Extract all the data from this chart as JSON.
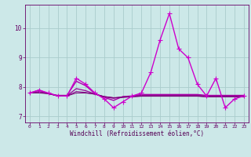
{
  "lines": [
    {
      "x": [
        0,
        1,
        2,
        3,
        4,
        5,
        6,
        7,
        8,
        9,
        10,
        11,
        12,
        13,
        14,
        15,
        16,
        17,
        18,
        19,
        20,
        21,
        22,
        23
      ],
      "y": [
        7.8,
        7.9,
        7.8,
        7.7,
        7.7,
        8.3,
        8.1,
        7.8,
        7.6,
        7.3,
        7.5,
        7.7,
        7.8,
        8.5,
        9.6,
        10.5,
        9.3,
        9.0,
        8.1,
        7.7,
        8.3,
        7.3,
        7.6,
        7.7
      ],
      "color": "#cc00cc",
      "marker": "+",
      "lw": 1.0,
      "ms": 4,
      "zorder": 5
    },
    {
      "x": [
        0,
        1,
        2,
        3,
        4,
        5,
        6,
        7,
        8,
        9,
        10,
        11,
        12,
        13,
        14,
        15,
        16,
        17,
        18,
        19,
        20,
        21,
        22,
        23
      ],
      "y": [
        7.8,
        7.9,
        7.78,
        7.72,
        7.72,
        8.2,
        8.05,
        7.78,
        7.65,
        7.55,
        7.68,
        7.7,
        7.75,
        7.75,
        7.75,
        7.75,
        7.75,
        7.75,
        7.75,
        7.72,
        7.72,
        7.72,
        7.72,
        7.72
      ],
      "color": "#aa00aa",
      "marker": null,
      "lw": 1.0,
      "ms": 0,
      "zorder": 3
    },
    {
      "x": [
        0,
        1,
        2,
        3,
        4,
        5,
        6,
        7,
        8,
        9,
        10,
        11,
        12,
        13,
        14,
        15,
        16,
        17,
        18,
        19,
        20,
        21,
        22,
        23
      ],
      "y": [
        7.8,
        7.85,
        7.78,
        7.71,
        7.71,
        7.95,
        7.88,
        7.77,
        7.67,
        7.62,
        7.67,
        7.69,
        7.72,
        7.72,
        7.72,
        7.72,
        7.72,
        7.72,
        7.72,
        7.7,
        7.7,
        7.7,
        7.7,
        7.7
      ],
      "color": "#990099",
      "marker": null,
      "lw": 0.9,
      "ms": 0,
      "zorder": 3
    },
    {
      "x": [
        0,
        1,
        2,
        3,
        4,
        5,
        6,
        7,
        8,
        9,
        10,
        11,
        12,
        13,
        14,
        15,
        16,
        17,
        18,
        19,
        20,
        21,
        22,
        23
      ],
      "y": [
        7.8,
        7.82,
        7.78,
        7.7,
        7.7,
        7.85,
        7.82,
        7.76,
        7.68,
        7.64,
        7.66,
        7.68,
        7.7,
        7.7,
        7.7,
        7.7,
        7.7,
        7.7,
        7.7,
        7.68,
        7.68,
        7.68,
        7.68,
        7.68
      ],
      "color": "#880088",
      "marker": null,
      "lw": 0.8,
      "ms": 0,
      "zorder": 3
    },
    {
      "x": [
        0,
        1,
        2,
        3,
        4,
        5,
        6,
        7,
        8,
        9,
        10,
        11,
        12,
        13,
        14,
        15,
        16,
        17,
        18,
        19,
        20,
        21,
        22,
        23
      ],
      "y": [
        7.8,
        7.8,
        7.78,
        7.7,
        7.7,
        7.8,
        7.8,
        7.76,
        7.68,
        7.64,
        7.65,
        7.67,
        7.69,
        7.69,
        7.69,
        7.69,
        7.69,
        7.69,
        7.69,
        7.67,
        7.67,
        7.67,
        7.67,
        7.67
      ],
      "color": "#770077",
      "marker": null,
      "lw": 0.7,
      "ms": 0,
      "zorder": 3
    }
  ],
  "xlim": [
    -0.5,
    23.5
  ],
  "ylim": [
    6.8,
    10.8
  ],
  "yticks": [
    7,
    8,
    9,
    10
  ],
  "xticks": [
    0,
    1,
    2,
    3,
    4,
    5,
    6,
    7,
    8,
    9,
    10,
    11,
    12,
    13,
    14,
    15,
    16,
    17,
    18,
    19,
    20,
    21,
    22,
    23
  ],
  "xlabel": "Windchill (Refroidissement éolien,°C)",
  "bg_color": "#cce8e8",
  "grid_color": "#aacccc",
  "tick_color": "#660066",
  "label_color": "#550055"
}
